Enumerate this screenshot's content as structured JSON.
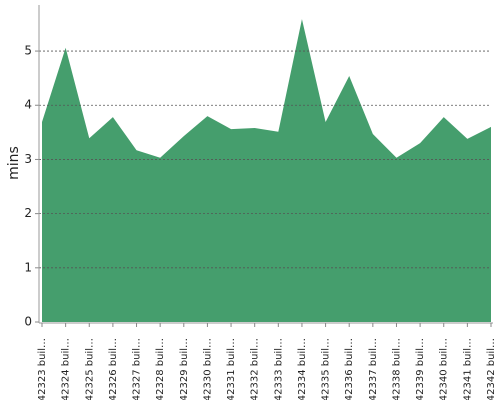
{
  "chart_data": {
    "type": "area",
    "y_label": "mins",
    "categories": [
      "#42323 buil…",
      "#42324 buil…",
      "#42325 buil…",
      "#42326 buil…",
      "#42327 buil…",
      "#42328 buil…",
      "#42329 buil…",
      "#42330 buil…",
      "#42331 buil…",
      "#42332 buil…",
      "#42333 buil…",
      "#42334 buil…",
      "#42335 buil…",
      "#42336 buil…",
      "#42337 buil…",
      "#42338 buil…",
      "#42339 buil…",
      "#42340 buil…",
      "#42341 buil…",
      "#42342 buil…"
    ],
    "values": [
      3.69,
      5.06,
      3.39,
      3.78,
      3.17,
      3.03,
      3.43,
      3.8,
      3.56,
      3.58,
      3.51,
      5.59,
      3.69,
      4.54,
      3.47,
      3.03,
      3.3,
      3.78,
      3.38,
      3.6
    ],
    "color": "#459e6d",
    "ylim": [
      0,
      5.85
    ],
    "yticks": [
      0,
      1,
      2,
      3,
      4,
      5
    ],
    "grid": true
  }
}
